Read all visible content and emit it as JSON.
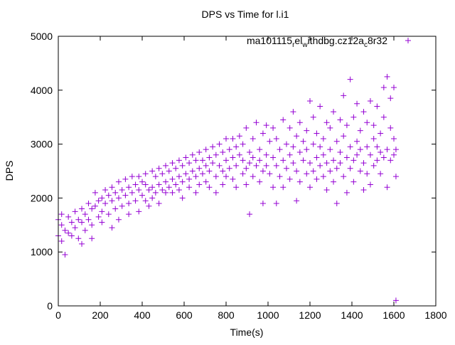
{
  "chart_data": {
    "type": "scatter",
    "title": "DPS vs Time for l.i1",
    "xlabel": "Time(s)",
    "ylabel": "DPS",
    "xlim": [
      0,
      1800
    ],
    "ylim": [
      0,
      5000
    ],
    "xticks": [
      0,
      200,
      400,
      600,
      800,
      1000,
      1200,
      1400,
      1600,
      1800
    ],
    "yticks": [
      0,
      1000,
      2000,
      3000,
      4000,
      5000
    ],
    "grid": false,
    "legend_position": "top-right",
    "series": [
      {
        "name": "ma101115",
        "name_sub1": "r",
        "name_mid": "el",
        "name_sub2": "w",
        "name_mid2": "ithdbg.cz12a",
        "name_sub3": "c",
        "name_end": "8r32",
        "color": "#9400d3",
        "marker": "+",
        "points": [
          [
            0,
            1300
          ],
          [
            0,
            1600
          ],
          [
            16,
            1500
          ],
          [
            16,
            1200
          ],
          [
            16,
            1700
          ],
          [
            32,
            950
          ],
          [
            32,
            1400
          ],
          [
            48,
            1350
          ],
          [
            48,
            1650
          ],
          [
            64,
            1550
          ],
          [
            64,
            1300
          ],
          [
            80,
            1450
          ],
          [
            80,
            1750
          ],
          [
            96,
            1250
          ],
          [
            96,
            1600
          ],
          [
            112,
            1550
          ],
          [
            112,
            1800
          ],
          [
            112,
            1150
          ],
          [
            128,
            1700
          ],
          [
            128,
            1400
          ],
          [
            144,
            1600
          ],
          [
            144,
            1900
          ],
          [
            160,
            1500
          ],
          [
            160,
            1800
          ],
          [
            160,
            1250
          ],
          [
            176,
            1850
          ],
          [
            176,
            2100
          ],
          [
            192,
            1650
          ],
          [
            192,
            1950
          ],
          [
            208,
            1750
          ],
          [
            208,
            2000
          ],
          [
            208,
            1550
          ],
          [
            224,
            1900
          ],
          [
            224,
            2150
          ],
          [
            240,
            1700
          ],
          [
            240,
            2050
          ],
          [
            256,
            1950
          ],
          [
            256,
            2200
          ],
          [
            256,
            1450
          ],
          [
            272,
            1800
          ],
          [
            272,
            2100
          ],
          [
            288,
            2000
          ],
          [
            288,
            2300
          ],
          [
            288,
            1600
          ],
          [
            304,
            1850
          ],
          [
            304,
            2150
          ],
          [
            320,
            2050
          ],
          [
            320,
            2350
          ],
          [
            336,
            1900
          ],
          [
            336,
            2200
          ],
          [
            336,
            1700
          ],
          [
            352,
            2100
          ],
          [
            352,
            2400
          ],
          [
            368,
            1950
          ],
          [
            368,
            2250
          ],
          [
            384,
            2150
          ],
          [
            384,
            1750
          ],
          [
            384,
            2400
          ],
          [
            400,
            2050
          ],
          [
            400,
            2300
          ],
          [
            416,
            1950
          ],
          [
            416,
            2250
          ],
          [
            416,
            2450
          ],
          [
            432,
            2150
          ],
          [
            432,
            1850
          ],
          [
            448,
            2200
          ],
          [
            448,
            2500
          ],
          [
            448,
            2000
          ],
          [
            464,
            2100
          ],
          [
            464,
            2400
          ],
          [
            480,
            2250
          ],
          [
            480,
            1900
          ],
          [
            480,
            2550
          ],
          [
            496,
            2150
          ],
          [
            496,
            2450
          ],
          [
            512,
            2300
          ],
          [
            512,
            2100
          ],
          [
            512,
            2600
          ],
          [
            528,
            2200
          ],
          [
            528,
            2500
          ],
          [
            544,
            2350
          ],
          [
            544,
            2650
          ],
          [
            544,
            2100
          ],
          [
            560,
            2250
          ],
          [
            560,
            2550
          ],
          [
            576,
            2400
          ],
          [
            576,
            2150
          ],
          [
            576,
            2700
          ],
          [
            592,
            2300
          ],
          [
            592,
            2600
          ],
          [
            592,
            2000
          ],
          [
            608,
            2450
          ],
          [
            608,
            2750
          ],
          [
            624,
            2350
          ],
          [
            624,
            2200
          ],
          [
            624,
            2650
          ],
          [
            640,
            2500
          ],
          [
            640,
            2800
          ],
          [
            656,
            2400
          ],
          [
            656,
            2100
          ],
          [
            656,
            2700
          ],
          [
            672,
            2550
          ],
          [
            672,
            2850
          ],
          [
            672,
            2250
          ],
          [
            688,
            2450
          ],
          [
            688,
            2700
          ],
          [
            704,
            2300
          ],
          [
            704,
            2600
          ],
          [
            704,
            2900
          ],
          [
            720,
            2500
          ],
          [
            720,
            2750
          ],
          [
            720,
            2200
          ],
          [
            736,
            2650
          ],
          [
            736,
            2950
          ],
          [
            752,
            2400
          ],
          [
            752,
            2800
          ],
          [
            752,
            2100
          ],
          [
            768,
            2600
          ],
          [
            768,
            3000
          ],
          [
            784,
            2500
          ],
          [
            784,
            2850
          ],
          [
            784,
            2250
          ],
          [
            800,
            2700
          ],
          [
            800,
            3100
          ],
          [
            800,
            2400
          ],
          [
            816,
            2550
          ],
          [
            816,
            2900
          ],
          [
            832,
            2750
          ],
          [
            832,
            2350
          ],
          [
            832,
            3100
          ],
          [
            848,
            2600
          ],
          [
            848,
            2950
          ],
          [
            848,
            2200
          ],
          [
            864,
            2800
          ],
          [
            864,
            3150
          ],
          [
            880,
            2450
          ],
          [
            880,
            2700
          ],
          [
            880,
            3000
          ],
          [
            896,
            2550
          ],
          [
            896,
            3300
          ],
          [
            896,
            2250
          ],
          [
            912,
            2850
          ],
          [
            912,
            1700
          ],
          [
            912,
            2650
          ],
          [
            928,
            2400
          ],
          [
            928,
            3100
          ],
          [
            928,
            2750
          ],
          [
            944,
            2600
          ],
          [
            944,
            3400
          ],
          [
            960,
            2300
          ],
          [
            960,
            2900
          ],
          [
            960,
            2700
          ],
          [
            976,
            3200
          ],
          [
            976,
            2500
          ],
          [
            976,
            1900
          ],
          [
            992,
            2800
          ],
          [
            992,
            3350
          ],
          [
            992,
            2600
          ],
          [
            1008,
            2450
          ],
          [
            1008,
            3050
          ],
          [
            1024,
            2750
          ],
          [
            1024,
            2200
          ],
          [
            1024,
            3300
          ],
          [
            1040,
            2600
          ],
          [
            1040,
            3100
          ],
          [
            1040,
            1900
          ],
          [
            1056,
            2900
          ],
          [
            1056,
            2400
          ],
          [
            1072,
            2700
          ],
          [
            1072,
            3450
          ],
          [
            1072,
            2200
          ],
          [
            1088,
            3000
          ],
          [
            1088,
            2550
          ],
          [
            1104,
            2350
          ],
          [
            1104,
            2800
          ],
          [
            1104,
            3300
          ],
          [
            1120,
            3600
          ],
          [
            1120,
            2650
          ],
          [
            1120,
            2950
          ],
          [
            1136,
            2500
          ],
          [
            1136,
            3150
          ],
          [
            1136,
            1950
          ],
          [
            1152,
            2850
          ],
          [
            1152,
            3400
          ],
          [
            1152,
            2300
          ],
          [
            1168,
            2700
          ],
          [
            1168,
            3050
          ],
          [
            1184,
            2450
          ],
          [
            1184,
            3250
          ],
          [
            1184,
            2900
          ],
          [
            1200,
            3800
          ],
          [
            1200,
            2650
          ],
          [
            1200,
            2200
          ],
          [
            1216,
            3000
          ],
          [
            1216,
            2500
          ],
          [
            1216,
            3500
          ],
          [
            1232,
            2750
          ],
          [
            1232,
            3200
          ],
          [
            1232,
            2350
          ],
          [
            1248,
            2950
          ],
          [
            1248,
            2600
          ],
          [
            1248,
            3700
          ],
          [
            1264,
            2400
          ],
          [
            1264,
            3100
          ],
          [
            1264,
            2800
          ],
          [
            1280,
            3400
          ],
          [
            1280,
            2650
          ],
          [
            1280,
            2150
          ],
          [
            1296,
            2900
          ],
          [
            1296,
            3300
          ],
          [
            1296,
            2500
          ],
          [
            1312,
            2700
          ],
          [
            1312,
            3600
          ],
          [
            1312,
            2300
          ],
          [
            1328,
            3050
          ],
          [
            1328,
            1900
          ],
          [
            1328,
            2550
          ],
          [
            1344,
            2850
          ],
          [
            1344,
            3450
          ],
          [
            1344,
            2650
          ],
          [
            1360,
            3150
          ],
          [
            1360,
            2400
          ],
          [
            1360,
            3900
          ],
          [
            1376,
            2750
          ],
          [
            1376,
            3350
          ],
          [
            1376,
            2100
          ],
          [
            1392,
            4200
          ],
          [
            1392,
            2950
          ],
          [
            1392,
            2550
          ],
          [
            1408,
            2700
          ],
          [
            1408,
            3500
          ],
          [
            1408,
            2300
          ],
          [
            1424,
            3050
          ],
          [
            1424,
            2800
          ],
          [
            1424,
            3750
          ],
          [
            1440,
            2500
          ],
          [
            1440,
            3250
          ],
          [
            1440,
            2900
          ],
          [
            1456,
            3600
          ],
          [
            1456,
            2650
          ],
          [
            1456,
            2150
          ],
          [
            1472,
            2950
          ],
          [
            1472,
            3400
          ],
          [
            1472,
            2450
          ],
          [
            1488,
            2800
          ],
          [
            1488,
            3800
          ],
          [
            1488,
            2250
          ],
          [
            1504,
            3100
          ],
          [
            1504,
            2600
          ],
          [
            1504,
            3350
          ],
          [
            1520,
            2700
          ],
          [
            1520,
            3700
          ],
          [
            1520,
            2950
          ],
          [
            1536,
            2450
          ],
          [
            1536,
            3200
          ],
          [
            1536,
            2850
          ],
          [
            1552,
            4050
          ],
          [
            1552,
            2750
          ],
          [
            1552,
            3500
          ],
          [
            1568,
            2900
          ],
          [
            1568,
            4250
          ],
          [
            1568,
            2200
          ],
          [
            1584,
            3300
          ],
          [
            1584,
            2700
          ],
          [
            1584,
            3850
          ],
          [
            1600,
            2800
          ],
          [
            1600,
            4050
          ],
          [
            1600,
            3100
          ],
          [
            1610,
            100
          ],
          [
            1610,
            2900
          ],
          [
            1610,
            2400
          ]
        ]
      }
    ]
  }
}
